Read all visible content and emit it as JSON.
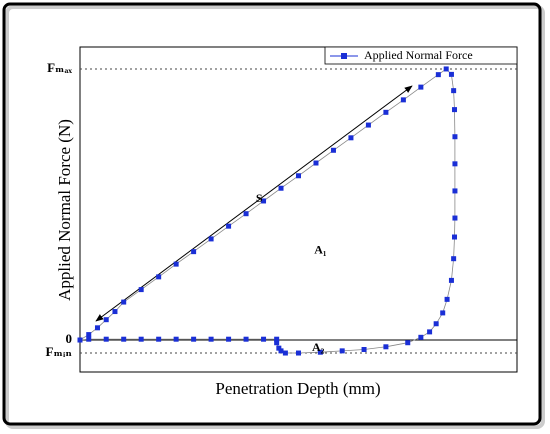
{
  "chart_data": {
    "type": "line",
    "xlabel": "Penetration Depth (mm)",
    "ylabel": "Applied Normal Force (N)",
    "xlim": [
      0,
      1
    ],
    "ylim": [
      -0.118,
      1.081
    ],
    "yticks": [
      {
        "value": 1,
        "label": "Fₘₐₓ"
      },
      {
        "value": 0,
        "label": "0"
      },
      {
        "value": -0.048,
        "label": "Fₘᵢₙ"
      }
    ],
    "grid": true,
    "legend": "upper right",
    "annotations": [
      {
        "text": "S",
        "x": 0.41,
        "y": 0.52
      },
      {
        "text": "A₁",
        "x": 0.55,
        "y": 0.33
      },
      {
        "text": "A₂",
        "x": 0.545,
        "y": -0.03
      }
    ],
    "series": [
      {
        "name": "Applied Normal Force",
        "color": "#1a2fd6",
        "x": [
          0,
          0.02,
          0.04,
          0.06,
          0.08,
          0.1,
          0.14,
          0.18,
          0.22,
          0.26,
          0.3,
          0.34,
          0.38,
          0.42,
          0.46,
          0.5,
          0.54,
          0.58,
          0.62,
          0.66,
          0.7,
          0.74,
          0.78,
          0.82,
          0.838,
          0.85,
          0.855,
          0.857,
          0.858,
          0.858,
          0.858,
          0.858,
          0.857,
          0.855,
          0.85,
          0.84,
          0.83,
          0.815,
          0.8,
          0.78,
          0.75,
          0.7,
          0.65,
          0.6,
          0.55,
          0.5,
          0.47,
          0.46,
          0.455,
          0.45,
          0.45,
          0.42,
          0.38,
          0.34,
          0.3,
          0.26,
          0.22,
          0.18,
          0.14,
          0.1,
          0.06,
          0.02,
          0
        ],
        "values": [
          0,
          0.02,
          0.045,
          0.075,
          0.105,
          0.14,
          0.186,
          0.233,
          0.28,
          0.326,
          0.373,
          0.42,
          0.466,
          0.513,
          0.56,
          0.606,
          0.653,
          0.7,
          0.746,
          0.793,
          0.84,
          0.886,
          0.933,
          0.979,
          1.0,
          0.98,
          0.92,
          0.85,
          0.75,
          0.65,
          0.55,
          0.45,
          0.38,
          0.3,
          0.22,
          0.15,
          0.1,
          0.06,
          0.03,
          0.01,
          -0.01,
          -0.025,
          -0.035,
          -0.04,
          -0.045,
          -0.048,
          -0.048,
          -0.04,
          -0.03,
          -0.01,
          0.003,
          0.003,
          0.003,
          0.003,
          0.003,
          0.003,
          0.003,
          0.003,
          0.003,
          0.003,
          0.003,
          0.003,
          0
        ]
      }
    ]
  }
}
